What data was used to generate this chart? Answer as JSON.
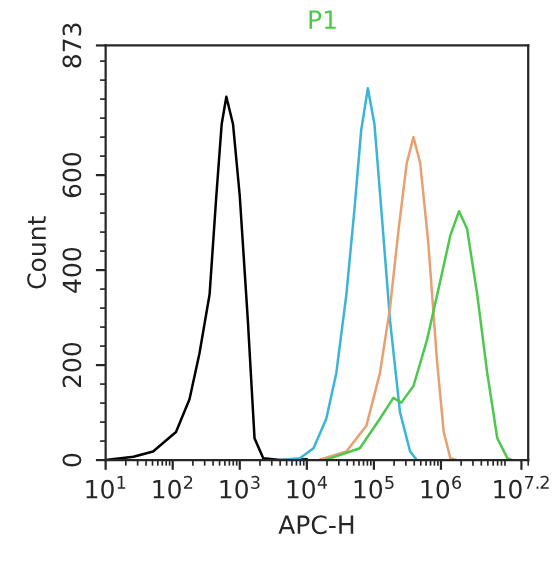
{
  "chart_data": {
    "type": "line",
    "title": "P1",
    "xlabel": "APC-H",
    "ylabel": "Count",
    "log": "x",
    "xlim": [
      10,
      20000000
    ],
    "ylim": [
      0,
      873
    ],
    "xticks": [
      {
        "value": 10,
        "label": "10$^{1}$"
      },
      {
        "value": 100,
        "label": "10$^{2}$"
      },
      {
        "value": 1000,
        "label": "10$^{3}$"
      },
      {
        "value": 10000,
        "label": "10$^{4}$"
      },
      {
        "value": 100000,
        "label": "10$^{5}$"
      },
      {
        "value": 1000000,
        "label": "10$^{6}$"
      },
      {
        "value": 15848932,
        "label": "10$^{7.2}$"
      }
    ],
    "yticks": [
      0,
      200,
      400,
      600,
      873
    ],
    "grid": false,
    "marker": "none",
    "line_style": "solid",
    "series": [
      {
        "color": "#000000",
        "x": [
          10,
          26,
          51,
          112,
          178,
          251,
          355,
          447,
          537,
          631,
          794,
          1000,
          1320,
          1660,
          2240,
          3980,
          10000
        ],
        "values": [
          0,
          7,
          18,
          59,
          128,
          225,
          349,
          556,
          707,
          765,
          707,
          556,
          294,
          46,
          4,
          0,
          2
        ]
      },
      {
        "color": "#3cb4d8",
        "x": [
          3980,
          7900,
          12600,
          19500,
          27500,
          38900,
          51300,
          64600,
          81300,
          102000,
          129000,
          174000,
          245000,
          347000,
          437000
        ],
        "values": [
          0,
          4,
          25,
          87,
          183,
          349,
          528,
          694,
          783,
          707,
          528,
          294,
          101,
          18,
          0
        ]
      },
      {
        "color": "#e8a070",
        "x": [
          15500,
          38900,
          77600,
          123000,
          174000,
          234000,
          309000,
          389000,
          490000,
          646000,
          871000,
          1100000,
          1380000,
          1740000
        ],
        "values": [
          1,
          18,
          73,
          183,
          321,
          487,
          625,
          680,
          625,
          459,
          211,
          59,
          4,
          0
        ]
      },
      {
        "color": "#4cc84c",
        "x": [
          19500,
          61700,
          123000,
          195000,
          257000,
          389000,
          617000,
          977000,
          1380000,
          1860000,
          2450000,
          3470000,
          4900000,
          6920000,
          9770000,
          11700000
        ],
        "values": [
          1,
          25,
          87,
          131,
          121,
          156,
          252,
          377,
          473,
          524,
          487,
          349,
          183,
          46,
          4,
          0
        ]
      }
    ]
  }
}
